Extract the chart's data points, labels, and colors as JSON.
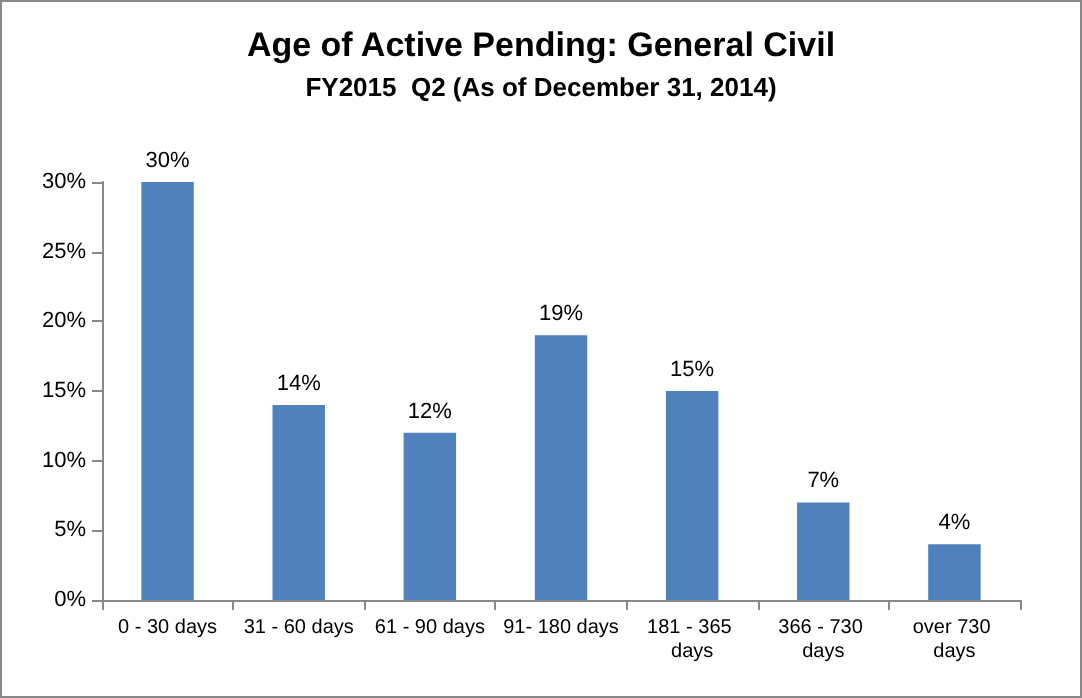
{
  "chart_data": {
    "type": "bar",
    "title": "Age of Active Pending: General Civil",
    "subtitle": "FY2015  Q2 (As of December 31, 2014)",
    "categories": [
      "0 - 30 days",
      "31 - 60 days",
      "61 - 90 days",
      "91- 180 days",
      "181 - 365 days",
      "366 - 730 days",
      "over 730 days"
    ],
    "values": [
      30,
      14,
      12,
      19,
      15,
      7,
      4
    ],
    "value_labels": [
      "30%",
      "14%",
      "12%",
      "19%",
      "15%",
      "7%",
      "4%"
    ],
    "color": "#4f81bd",
    "ylim": [
      0,
      30
    ],
    "yticks": [
      {
        "value": 0,
        "label": "0%"
      },
      {
        "value": 5,
        "label": "5%"
      },
      {
        "value": 10,
        "label": "10%"
      },
      {
        "value": 15,
        "label": "15%"
      },
      {
        "value": 20,
        "label": "20%"
      },
      {
        "value": 25,
        "label": "25%"
      },
      {
        "value": 30,
        "label": "30%"
      }
    ],
    "grid": false
  }
}
